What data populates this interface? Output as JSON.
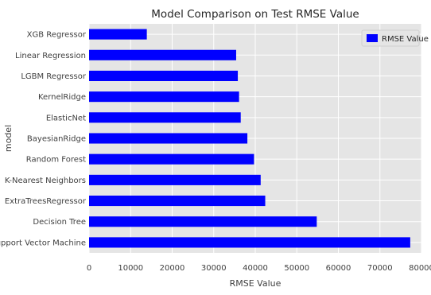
{
  "chart_data": {
    "type": "bar",
    "orientation": "horizontal",
    "title": "Model Comparison on Test RMSE Value",
    "xlabel": "RMSE Value",
    "ylabel": "model",
    "categories": [
      "XGB Regressor",
      "Linear Regression",
      "LGBM Regressor",
      "KernelRidge",
      "ElasticNet",
      "BayesianRidge",
      "Random Forest",
      "K-Nearest Neighbors",
      "ExtraTreesRegressor",
      "Decision Tree",
      "Support Vector Machine"
    ],
    "series": [
      {
        "name": "RMSE Value",
        "values": [
          13900,
          35400,
          35800,
          36100,
          36500,
          38100,
          39700,
          41300,
          42400,
          54800,
          77300
        ]
      }
    ],
    "xlim": [
      0,
      80000
    ],
    "xticks": [
      0,
      10000,
      20000,
      30000,
      40000,
      50000,
      60000,
      70000,
      80000
    ],
    "grid": true,
    "legend_position": "top-right",
    "colors": {
      "bar": "#0000ff",
      "plot_background": "#e5e5e5",
      "grid": "#ffffff"
    }
  }
}
